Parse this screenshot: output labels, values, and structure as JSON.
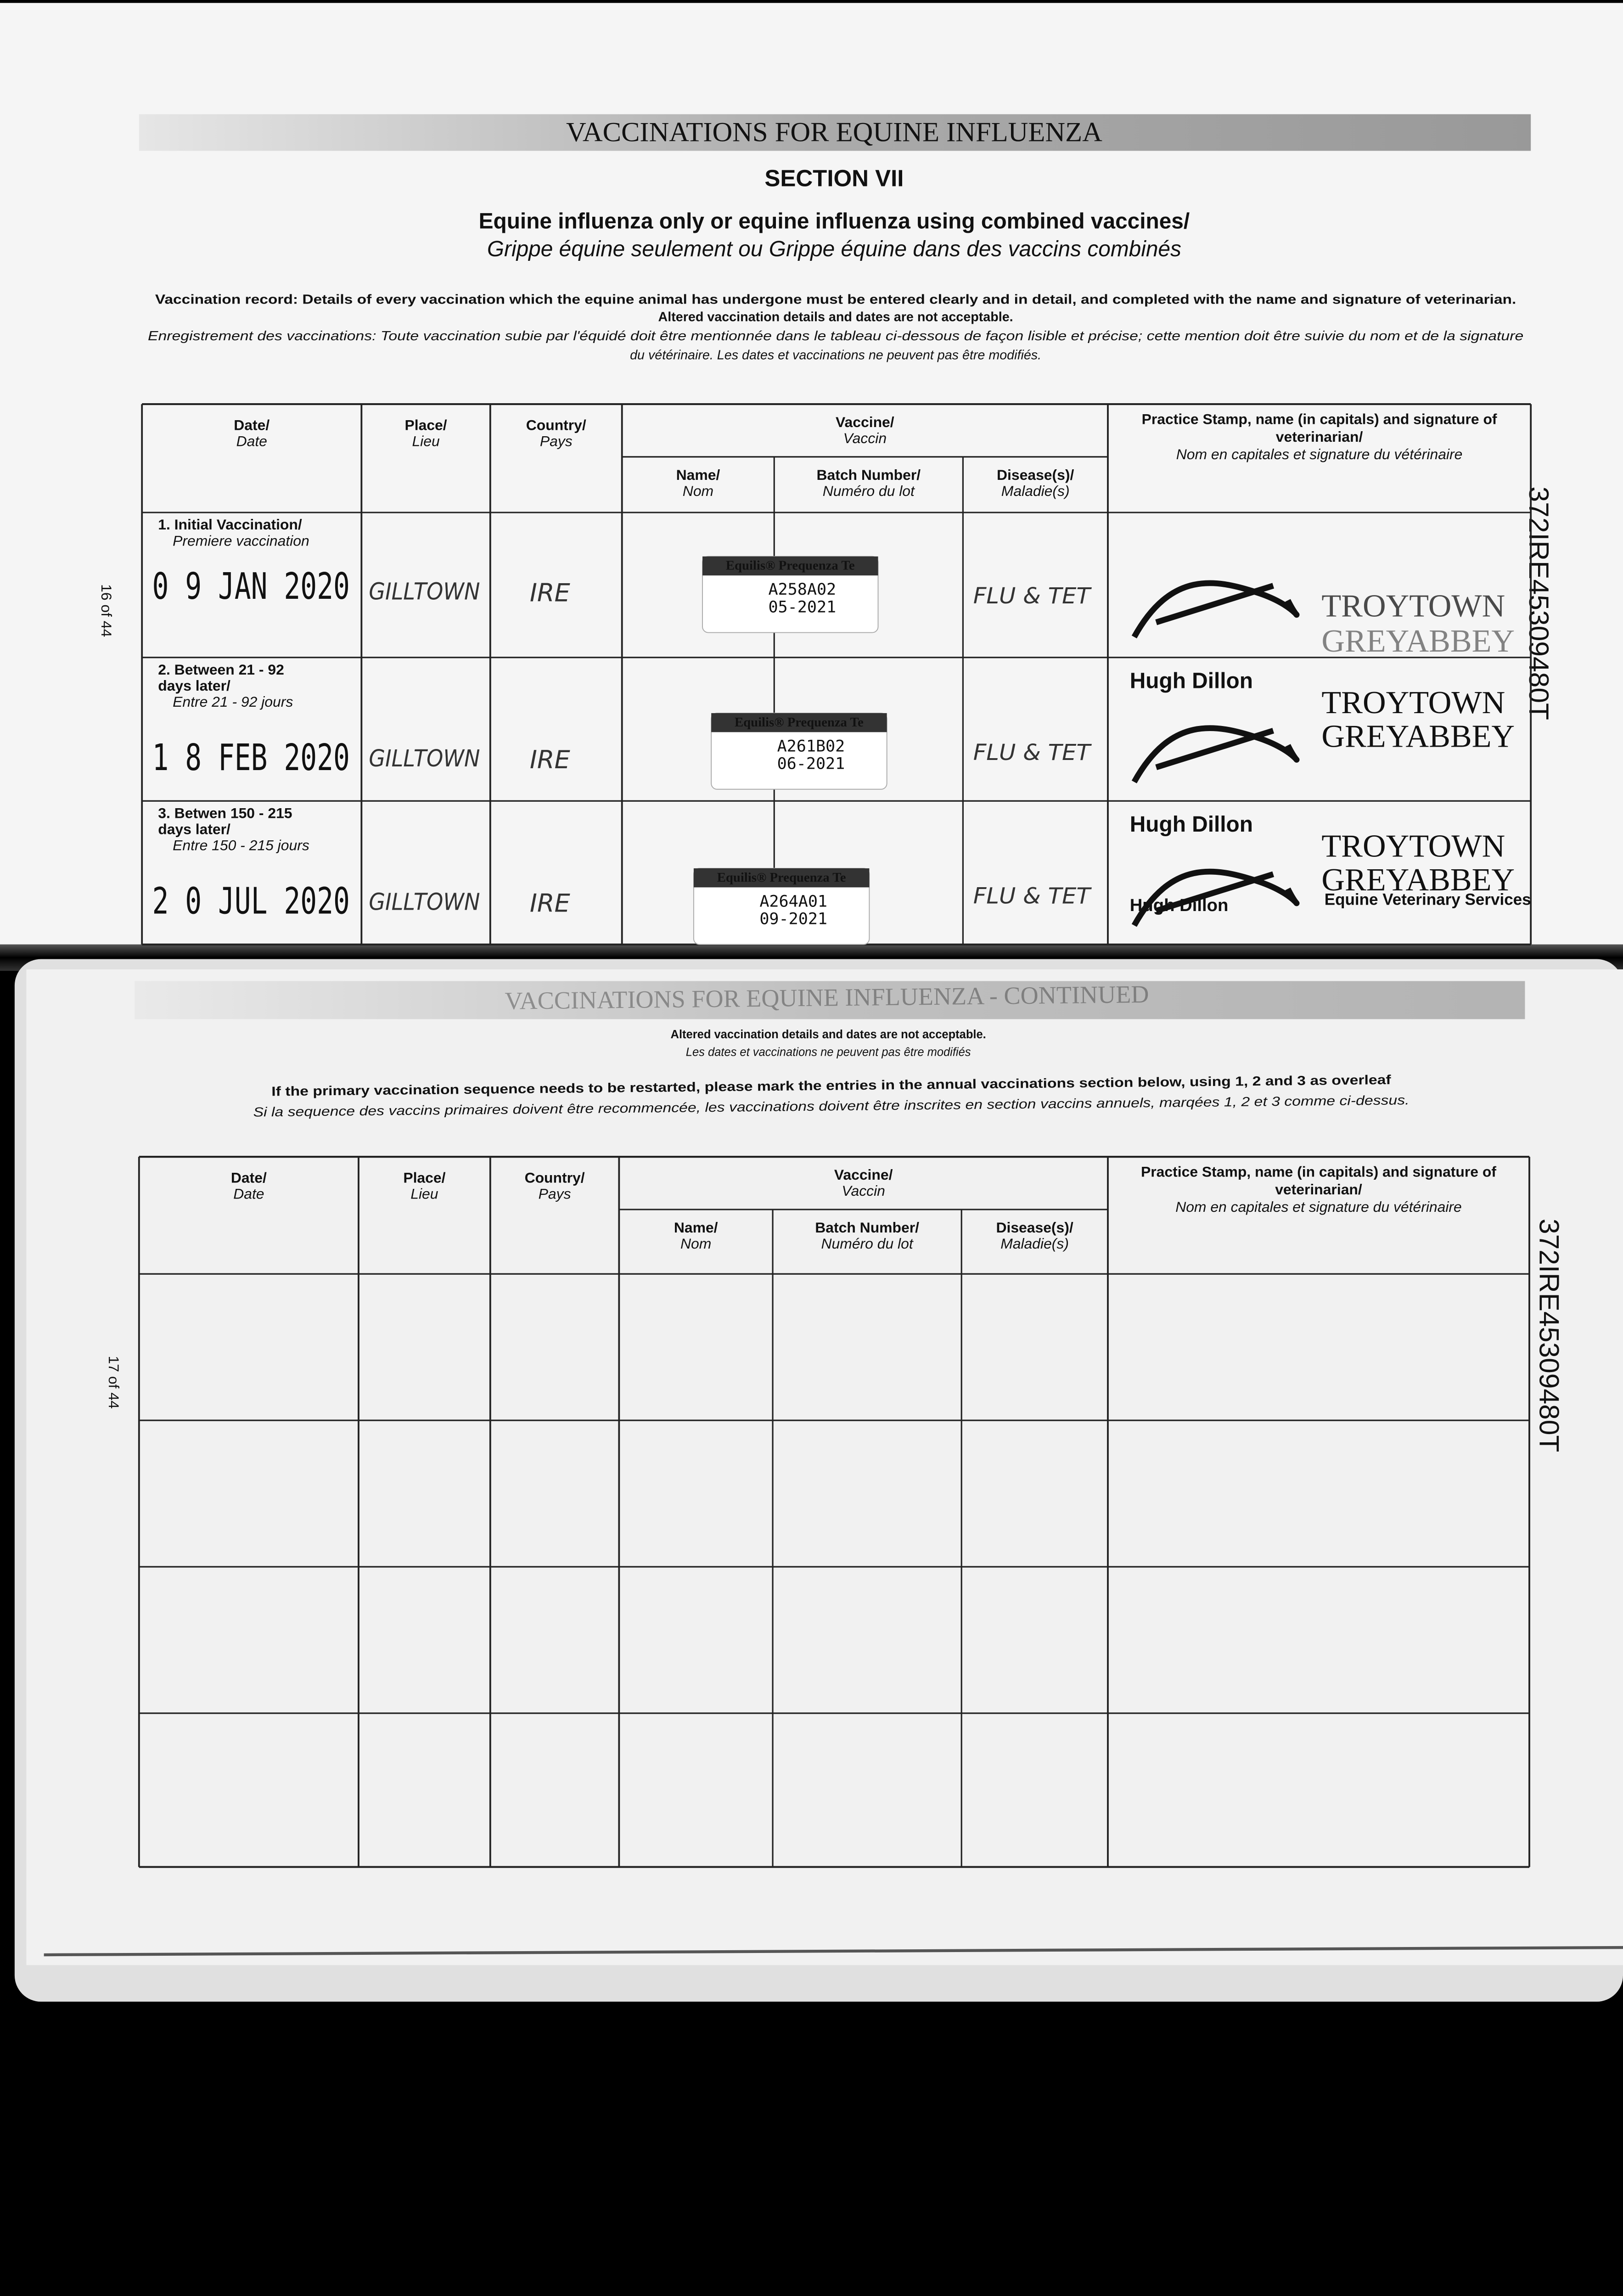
{
  "page1": {
    "banner": "VACCINATIONS FOR EQUINE INFLUENZA",
    "section": "SECTION VII",
    "subtitle_en": "Equine influenza only or equine influenza using combined vaccines/",
    "subtitle_fr": "Grippe équine seulement ou Grippe équine dans des vaccins combinés",
    "instructions": [
      "Vaccination record: Details of every vaccination which the equine animal has undergone must be entered clearly and in detail, and completed with the name and signature of veterinarian.",
      "Altered vaccination details and dates are not acceptable.",
      "Enregistrement des vaccinations: Toute vaccination subie par l'équidé doit être mentionnée dans le tableau ci-dessous de façon lisible et précise; cette mention doit être suivie du nom et de la signature",
      "du vétérinaire. Les dates et vaccinations ne peuvent pas être modifiés."
    ],
    "page_number": "16 of 44",
    "passport_id": "372IRE45309480T",
    "table": {
      "headers": {
        "date": [
          "Date/",
          "Date"
        ],
        "place": [
          "Place/",
          "Lieu"
        ],
        "country": [
          "Country/",
          "Pays"
        ],
        "vaccine": [
          "Vaccine/",
          "Vaccin"
        ],
        "name": [
          "Name/",
          "Nom"
        ],
        "batch": [
          "Batch Number/",
          "Numéro du lot"
        ],
        "disease": [
          "Disease(s)/",
          "Maladie(s)"
        ],
        "stamp": [
          "Practice Stamp, name (in capitals) and signature of",
          "veterinarian/",
          "Nom en capitales et signature du vétérinaire"
        ]
      },
      "rows": [
        {
          "label": [
            "1. Initial Vaccination/",
            "Premiere vaccination"
          ],
          "date": "0 9 JAN 2020",
          "place": "GILLTOWN",
          "country": "IRE",
          "vaccine": "Equilis® Prequenza Te",
          "lot": "A258A02",
          "exp": "05-2021",
          "disease": "FLU & TET",
          "stamp": [
            "TROYTOWN",
            "GREYABBEY"
          ]
        },
        {
          "label": [
            "2. Between 21 - 92",
            "days later/",
            "Entre 21 - 92 jours"
          ],
          "date": "1 8 FEB 2020",
          "place": "GILLTOWN",
          "country": "IRE",
          "vaccine": "Equilis® Prequenza Te",
          "lot": "A261B02",
          "exp": "06-2021",
          "disease": "FLU & TET",
          "stamp": [
            "Hugh Dillon",
            "TROYTOWN",
            "GREYABBEY"
          ]
        },
        {
          "label": [
            "3. Betwen 150 - 215",
            "days later/",
            "Entre 150 - 215 jours"
          ],
          "date": "2 0 JUL 2020",
          "place": "GILLTOWN",
          "country": "IRE",
          "vaccine": "Equilis® Prequenza Te",
          "lot": "A264A01",
          "exp": "09-2021",
          "disease": "FLU & TET",
          "stamp": [
            "Hugh Dillon",
            "TROYTOWN",
            "GREYABBEY",
            "Equine Veterinary Services",
            "Hugh Dillon"
          ]
        }
      ]
    }
  },
  "page2": {
    "banner": "VACCINATIONS FOR EQUINE INFLUENZA - CONTINUED",
    "notes": [
      "Altered vaccination details and dates are not acceptable.",
      "Les dates et vaccinations ne peuvent pas être modifiés",
      "If the primary vaccination sequence needs to be restarted, please mark the entries in the annual vaccinations section below, using 1, 2 and 3 as overleaf",
      "Si la sequence des vaccins primaires doivent être recommencée, les vaccinations doivent être inscrites en section vaccins annuels, marqées 1, 2 et 3 comme ci-dessus."
    ],
    "page_number": "17 of 44",
    "passport_id": "372IRE45309480T",
    "table": {
      "headers": {
        "date": [
          "Date/",
          "Date"
        ],
        "place": [
          "Place/",
          "Lieu"
        ],
        "country": [
          "Country/",
          "Pays"
        ],
        "vaccine": [
          "Vaccine/",
          "Vaccin"
        ],
        "name": [
          "Name/",
          "Nom"
        ],
        "batch": [
          "Batch Number/",
          "Numéro du lot"
        ],
        "disease": [
          "Disease(s)/",
          "Maladie(s)"
        ],
        "stamp": [
          "Practice Stamp, name (in capitals) and signature of",
          "veterinarian/",
          "Nom en capitales et signature du vétérinaire"
        ]
      }
    }
  }
}
